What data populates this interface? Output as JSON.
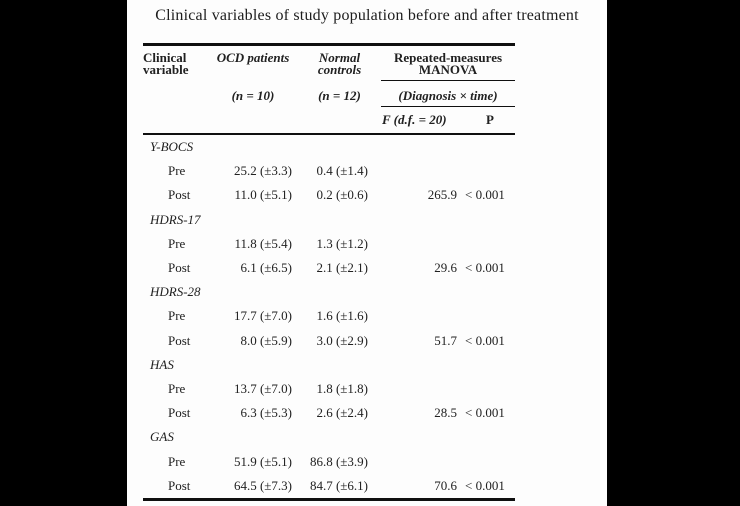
{
  "page": {
    "title": "Clinical variables of study population before and after treatment"
  },
  "colors": {
    "letterbox": "#000000",
    "page_background": "#fdfdfd",
    "text": "#212121",
    "rule": "#101010"
  },
  "table": {
    "header": {
      "col1_line1": "Clinical",
      "col1_line2": "variable",
      "ocd_label": "OCD patients",
      "ocd_n": "(n = 10)",
      "normal_line1": "Normal",
      "normal_line2": "controls",
      "normal_n": "(n = 12)",
      "manova_line1": "Repeated-measures",
      "manova_line2": "MANOVA",
      "manova_sub": "(Diagnosis × time)",
      "f_label": "F (d.f. = 20)",
      "p_label": "P"
    },
    "sections": [
      {
        "name": "Y-BOCS",
        "rows": [
          {
            "label": "Pre",
            "ocd": "25.2 (±3.3)",
            "control": "0.4 (±1.4)",
            "f": "",
            "p": ""
          },
          {
            "label": "Post",
            "ocd": "11.0 (±5.1)",
            "control": "0.2 (±0.6)",
            "f": "265.9",
            "p": "< 0.001"
          }
        ]
      },
      {
        "name": "HDRS-17",
        "rows": [
          {
            "label": "Pre",
            "ocd": "11.8 (±5.4)",
            "control": "1.3 (±1.2)",
            "f": "",
            "p": ""
          },
          {
            "label": "Post",
            "ocd": "6.1 (±6.5)",
            "control": "2.1 (±2.1)",
            "f": "29.6",
            "p": "< 0.001"
          }
        ]
      },
      {
        "name": "HDRS-28",
        "rows": [
          {
            "label": "Pre",
            "ocd": "17.7 (±7.0)",
            "control": "1.6 (±1.6)",
            "f": "",
            "p": ""
          },
          {
            "label": "Post",
            "ocd": "8.0 (±5.9)",
            "control": "3.0 (±2.9)",
            "f": "51.7",
            "p": "< 0.001"
          }
        ]
      },
      {
        "name": "HAS",
        "rows": [
          {
            "label": "Pre",
            "ocd": "13.7 (±7.0)",
            "control": "1.8 (±1.8)",
            "f": "",
            "p": ""
          },
          {
            "label": "Post",
            "ocd": "6.3 (±5.3)",
            "control": "2.6 (±2.4)",
            "f": "28.5",
            "p": "< 0.001"
          }
        ]
      },
      {
        "name": "GAS",
        "rows": [
          {
            "label": "Pre",
            "ocd": "51.9 (±5.1)",
            "control": "86.8 (±3.9)",
            "f": "",
            "p": ""
          },
          {
            "label": "Post",
            "ocd": "64.5 (±7.3)",
            "control": "84.7 (±6.1)",
            "f": "70.6",
            "p": "< 0.001"
          }
        ]
      }
    ]
  }
}
